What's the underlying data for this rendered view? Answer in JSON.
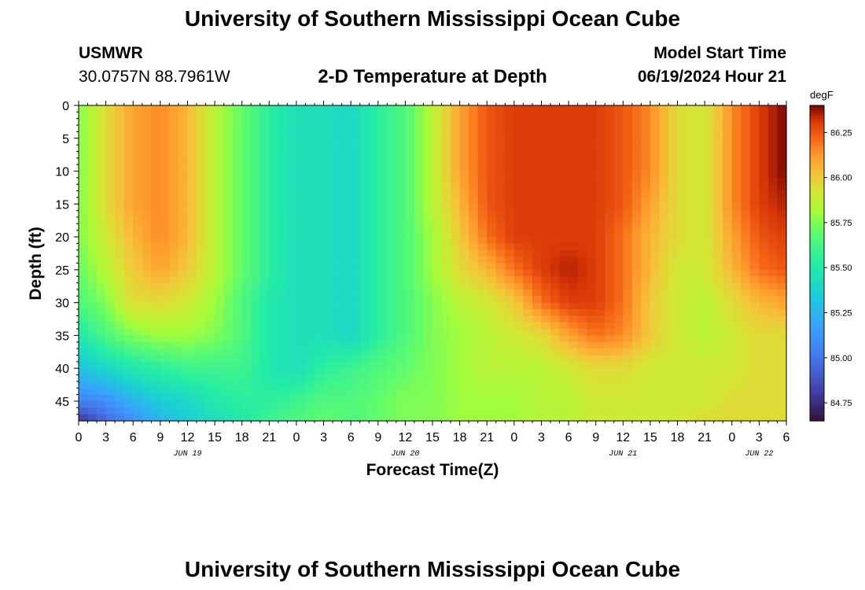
{
  "header": {
    "title": "University of Southern Mississippi Ocean Cube",
    "station": "USMWR",
    "coordinates": "30.0757N  88.7961W",
    "subtitle": "2-D Temperature at Depth",
    "model_label": "Model Start Time",
    "model_time": "06/19/2024 Hour 21"
  },
  "footer": {
    "title": "University of Southern Mississippi Ocean Cube"
  },
  "chart_data": {
    "type": "heatmap",
    "title": "2-D Temperature at Depth",
    "xlabel": "Forecast Time(Z)",
    "ylabel": "Depth (ft)",
    "x_range_hours": [
      0,
      78
    ],
    "y_range_ft": [
      0,
      48
    ],
    "x_tick_labels": [
      "0",
      "3",
      "6",
      "9",
      "12",
      "15",
      "18",
      "21",
      "0",
      "3",
      "6",
      "9",
      "12",
      "15",
      "18",
      "21",
      "0",
      "3",
      "6",
      "9",
      "12",
      "15",
      "18",
      "21",
      "0",
      "3",
      "6"
    ],
    "x_tick_hours": [
      0,
      3,
      6,
      9,
      12,
      15,
      18,
      21,
      24,
      27,
      30,
      33,
      36,
      39,
      42,
      45,
      48,
      51,
      54,
      57,
      60,
      63,
      66,
      69,
      72,
      75,
      78
    ],
    "date_labels": [
      {
        "label": "JUN 19",
        "hour": 12
      },
      {
        "label": "JUN 20",
        "hour": 36
      },
      {
        "label": "JUN 21",
        "hour": 60
      },
      {
        "label": "JUN 22",
        "hour": 75
      }
    ],
    "y_ticks": [
      0,
      5,
      10,
      15,
      20,
      25,
      30,
      35,
      40,
      45
    ],
    "colorbar": {
      "unit": "degF",
      "range": [
        84.65,
        86.4
      ],
      "ticks": [
        "84.75",
        "85.00",
        "85.25",
        "85.50",
        "85.75",
        "86.00",
        "86.25"
      ],
      "tick_values": [
        84.75,
        85.0,
        85.25,
        85.5,
        85.75,
        86.0,
        86.25
      ]
    },
    "grid_hours": [
      0,
      3,
      6,
      9,
      12,
      15,
      18,
      21,
      24,
      27,
      30,
      33,
      36,
      39,
      42,
      45,
      48,
      51,
      54,
      57,
      60,
      63,
      66,
      69,
      72,
      75,
      78
    ],
    "grid_depths": [
      0,
      5,
      10,
      15,
      20,
      25,
      30,
      35,
      40,
      45,
      48
    ],
    "temperature_degF": [
      [
        85.75,
        85.95,
        86.1,
        86.15,
        86.05,
        85.85,
        85.7,
        85.55,
        85.45,
        85.45,
        85.4,
        85.55,
        85.65,
        85.85,
        86.1,
        86.25,
        86.3,
        86.3,
        86.3,
        86.3,
        86.25,
        86.15,
        85.95,
        85.9,
        86.15,
        86.3,
        86.4
      ],
      [
        85.75,
        85.95,
        86.1,
        86.15,
        86.05,
        85.85,
        85.7,
        85.55,
        85.45,
        85.45,
        85.4,
        85.55,
        85.65,
        85.85,
        86.1,
        86.25,
        86.3,
        86.3,
        86.3,
        86.3,
        86.25,
        86.15,
        85.95,
        85.9,
        86.15,
        86.3,
        86.4
      ],
      [
        85.75,
        85.95,
        86.1,
        86.15,
        86.05,
        85.85,
        85.7,
        85.55,
        85.45,
        85.45,
        85.4,
        85.55,
        85.65,
        85.85,
        86.1,
        86.25,
        86.3,
        86.3,
        86.3,
        86.3,
        86.25,
        86.15,
        85.95,
        85.9,
        86.15,
        86.3,
        86.4
      ],
      [
        85.75,
        85.95,
        86.1,
        86.15,
        86.05,
        85.85,
        85.7,
        85.55,
        85.45,
        85.45,
        85.4,
        85.55,
        85.65,
        85.85,
        86.05,
        86.25,
        86.3,
        86.3,
        86.3,
        86.3,
        86.25,
        86.1,
        85.95,
        85.9,
        86.15,
        86.3,
        86.35
      ],
      [
        85.75,
        85.9,
        86.05,
        86.15,
        86.05,
        85.85,
        85.7,
        85.55,
        85.45,
        85.45,
        85.4,
        85.55,
        85.65,
        85.8,
        86.0,
        86.2,
        86.3,
        86.3,
        86.3,
        86.3,
        86.2,
        86.05,
        85.95,
        85.9,
        86.1,
        86.25,
        86.3
      ],
      [
        85.7,
        85.85,
        86.0,
        86.1,
        86.0,
        85.85,
        85.7,
        85.55,
        85.45,
        85.45,
        85.4,
        85.55,
        85.65,
        85.8,
        85.95,
        86.05,
        86.2,
        86.3,
        86.35,
        86.3,
        86.2,
        86.05,
        85.9,
        85.9,
        86.05,
        86.2,
        86.25
      ],
      [
        85.65,
        85.75,
        85.95,
        85.95,
        85.9,
        85.8,
        85.65,
        85.5,
        85.45,
        85.45,
        85.4,
        85.55,
        85.65,
        85.75,
        85.85,
        85.9,
        86.0,
        86.2,
        86.3,
        86.3,
        86.2,
        86.0,
        85.9,
        85.85,
        85.95,
        86.05,
        86.1
      ],
      [
        85.5,
        85.65,
        85.75,
        85.8,
        85.8,
        85.75,
        85.65,
        85.5,
        85.45,
        85.45,
        85.4,
        85.55,
        85.65,
        85.75,
        85.8,
        85.85,
        85.9,
        85.95,
        86.1,
        86.2,
        86.15,
        86.0,
        85.9,
        85.85,
        85.9,
        85.95,
        85.95
      ],
      [
        85.3,
        85.4,
        85.5,
        85.55,
        85.6,
        85.6,
        85.6,
        85.5,
        85.45,
        85.55,
        85.6,
        85.65,
        85.7,
        85.75,
        85.8,
        85.85,
        85.85,
        85.85,
        85.9,
        85.95,
        85.95,
        85.9,
        85.9,
        85.9,
        85.9,
        85.95,
        85.95
      ],
      [
        85.05,
        85.1,
        85.25,
        85.35,
        85.4,
        85.5,
        85.55,
        85.55,
        85.6,
        85.65,
        85.65,
        85.7,
        85.75,
        85.75,
        85.8,
        85.8,
        85.8,
        85.85,
        85.85,
        85.9,
        85.9,
        85.9,
        85.9,
        85.9,
        85.95,
        85.95,
        85.95
      ],
      [
        84.75,
        84.95,
        85.1,
        85.25,
        85.35,
        85.45,
        85.5,
        85.6,
        85.65,
        85.7,
        85.65,
        85.7,
        85.75,
        85.75,
        85.8,
        85.8,
        85.8,
        85.85,
        85.85,
        85.9,
        85.9,
        85.9,
        85.9,
        85.95,
        85.95,
        85.95,
        85.95
      ]
    ]
  }
}
